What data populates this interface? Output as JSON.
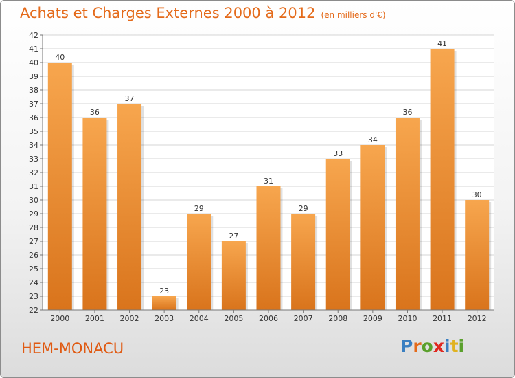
{
  "title": "Achats et Charges Externes 2000 à 2012",
  "unit": "(en milliers d'€)",
  "place_name": "HEM-MONACU",
  "logo": {
    "text": "Proxiti",
    "letter_colors": [
      "#3a7fc1",
      "#e46a1a",
      "#5aa02c",
      "#e0281f",
      "#3a7fc1",
      "#e0b21f",
      "#5aa02c"
    ]
  },
  "colors": {
    "bar_top": "#f7a64e",
    "bar_bottom": "#d9741c",
    "title": "#e46a1a",
    "grid": "#d4d4d4",
    "axis": "#777777"
  },
  "chart_data": {
    "type": "bar",
    "title": "Achats et Charges Externes 2000 à 2012",
    "subtitle": "(en milliers d'€)",
    "xlabel": "",
    "ylabel": "",
    "categories": [
      "2000",
      "2001",
      "2002",
      "2003",
      "2004",
      "2005",
      "2006",
      "2007",
      "2008",
      "2009",
      "2010",
      "2011",
      "2012"
    ],
    "values": [
      40,
      36,
      37,
      23,
      29,
      27,
      31,
      29,
      33,
      34,
      36,
      41,
      30
    ],
    "ylim": [
      22,
      42
    ],
    "yticks": [
      22,
      23,
      24,
      25,
      26,
      27,
      28,
      29,
      30,
      31,
      32,
      33,
      34,
      35,
      36,
      37,
      38,
      39,
      40,
      41,
      42
    ],
    "grid": true,
    "legend": "none"
  }
}
